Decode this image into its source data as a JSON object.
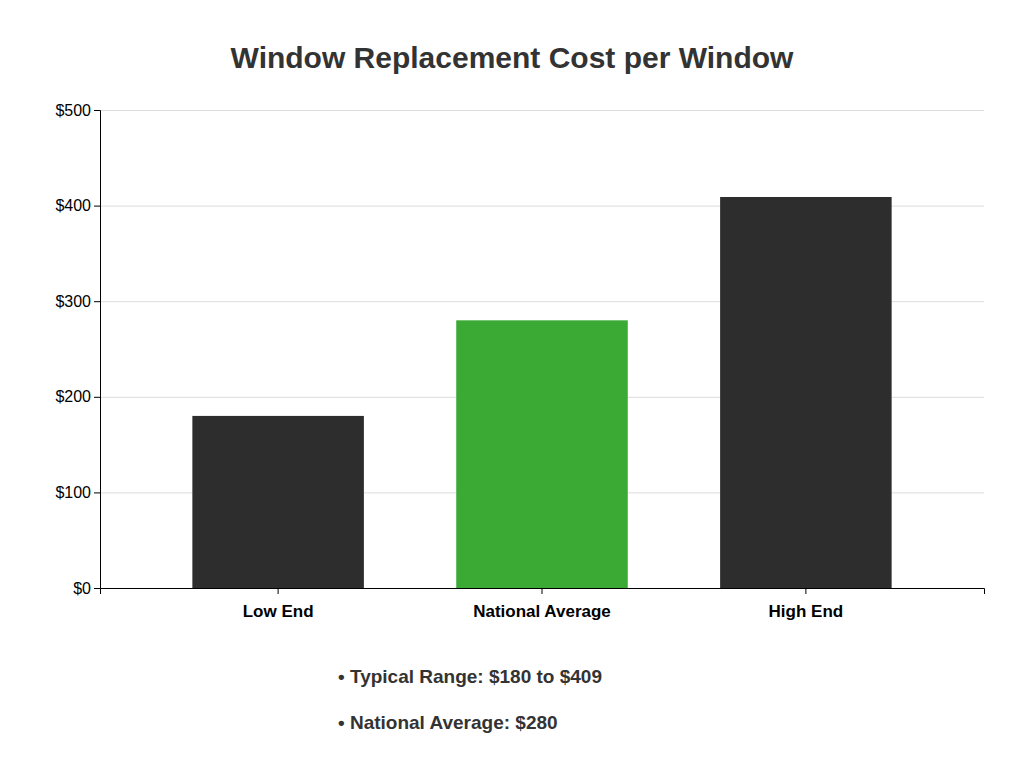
{
  "chart_data": {
    "type": "bar",
    "title": "Window Replacement Cost per Window",
    "categories": [
      "Low End",
      "National Average",
      "High End"
    ],
    "values": [
      180,
      280,
      409
    ],
    "colors": [
      "#2d2d2d",
      "#3aaa35",
      "#2d2d2d"
    ],
    "ylim": [
      0,
      500
    ],
    "yticks": [
      {
        "value": 0,
        "label": "$0"
      },
      {
        "value": 100,
        "label": "$100"
      },
      {
        "value": 200,
        "label": "$200"
      },
      {
        "value": 300,
        "label": "$300"
      },
      {
        "value": 400,
        "label": "$400"
      },
      {
        "value": 500,
        "label": "$500"
      }
    ],
    "grid": true,
    "annotations": [
      "•  Typical Range: $180 to $409",
      "•  National Average: $280"
    ]
  }
}
